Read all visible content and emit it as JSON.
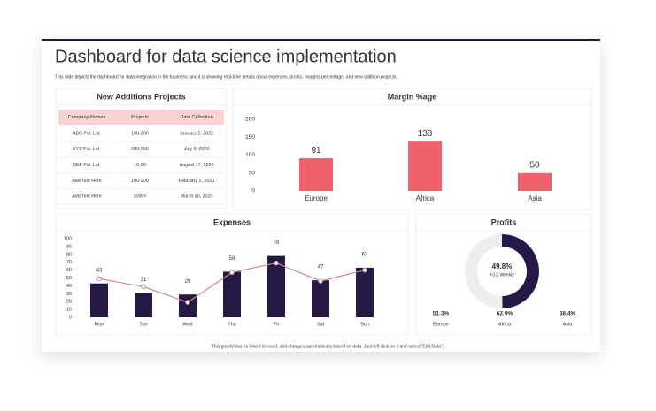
{
  "title": "Dashboard for data science implementation",
  "subtitle": "This slide depicts the dashboard for data integration in the business, and it is showing real-time details about expenses, profits, margins percentage, and new addition projects.",
  "footer": "This graph/chart is linked to excel, and changes automatically based on data. Just left click on it and select \"Edit Data\".",
  "table": {
    "title": "New Additions Projects",
    "header": [
      "Company Names",
      "Projects",
      "Data Collection"
    ],
    "rows": [
      [
        "ABC Pvt. Ltd.",
        "100-200",
        "January 2, 2022"
      ],
      [
        "XYZ Pvt. Ltd.",
        "200-500",
        "July 6, 2020"
      ],
      [
        "DEF Pvt. Ltd.",
        "10-20",
        "August 17, 2020"
      ],
      [
        "Add Text Here",
        "100-200",
        "February 2, 2020"
      ],
      [
        "Add Text Here",
        "1000+",
        "March 30, 2020"
      ]
    ]
  },
  "chart_data": [
    {
      "type": "bar",
      "title": "Margin %age",
      "categories": [
        "Europe",
        "Africa",
        "Asia"
      ],
      "values": [
        91,
        138,
        50
      ],
      "color": "#f0626b",
      "ylim": [
        0,
        200
      ],
      "yticks": [
        0,
        50,
        100,
        150,
        200
      ],
      "grid": false
    },
    {
      "type": "combo",
      "title": "Expenses",
      "categories": [
        "Mon",
        "Tue",
        "Wed",
        "Thu",
        "Fri",
        "Sat",
        "Sun"
      ],
      "series": [
        {
          "type": "bar",
          "color": "#241a45",
          "values": [
            43,
            31,
            29,
            58,
            78,
            47,
            63
          ]
        },
        {
          "type": "line",
          "color": "#c98a90",
          "values": [
            49,
            39,
            19,
            57,
            69,
            46,
            60
          ]
        }
      ],
      "ylim": [
        0,
        100
      ],
      "yticks": [
        0,
        10,
        20,
        30,
        40,
        50,
        60,
        70,
        80,
        90,
        100
      ],
      "grid": false
    },
    {
      "type": "donut",
      "title": "Profits",
      "values": [
        49.8
      ],
      "value_labels": [
        "49.8%"
      ],
      "center_note": "+3.2 Weekly",
      "color": "#241a45",
      "rest_color": "#eeeeee",
      "stats": {
        "categories": [
          "Europe",
          "Africa",
          "Asia"
        ],
        "values": [
          51.3,
          62.9,
          38.4
        ],
        "value_labels": [
          "51.3%",
          "62.9%",
          "38.4%"
        ]
      }
    }
  ]
}
